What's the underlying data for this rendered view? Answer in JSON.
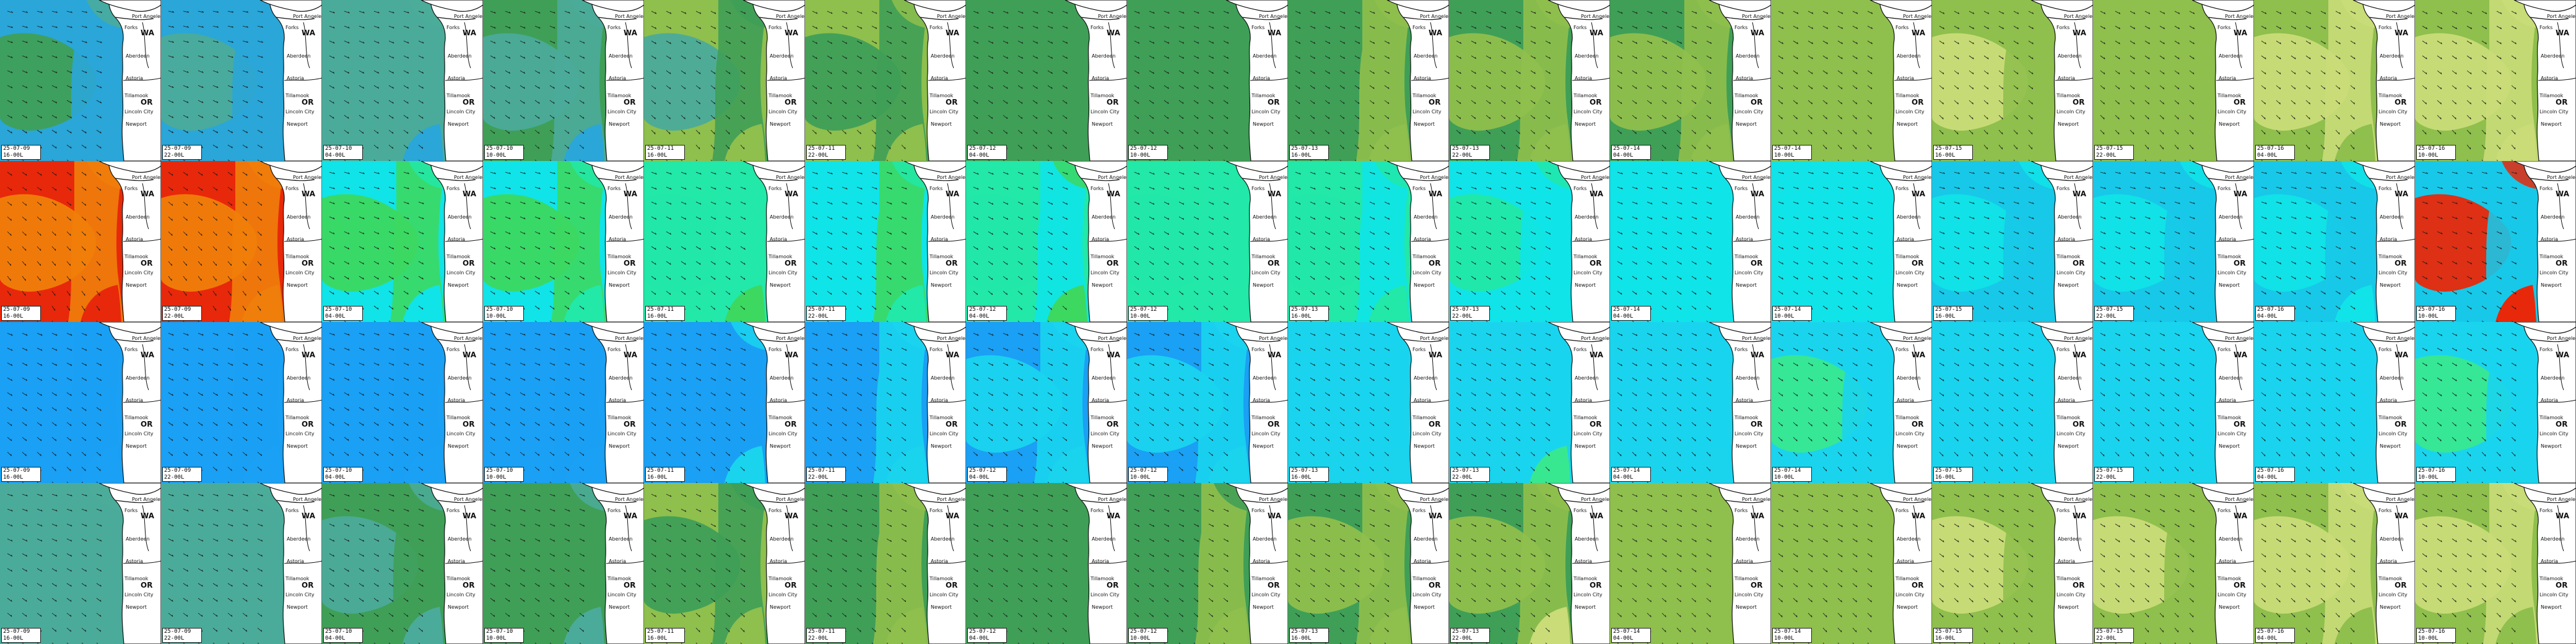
{
  "map": {
    "rows": [
      {
        "name": "row-1",
        "variable_colors": [
          "#2aa6d8",
          "#4bab9a",
          "#3f9f57",
          "#8fbf4d",
          "#c9dc78",
          "#f0a82a"
        ],
        "frames": [
          {
            "date": "25-07-09",
            "time": "16-00L",
            "levels": [
              0.15,
              0.35,
              0.1,
              0.1
            ]
          },
          {
            "date": "25-07-09",
            "time": "22-00L",
            "levels": [
              0.05,
              0.25,
              0.1,
              0.05
            ]
          },
          {
            "date": "25-07-10",
            "time": "04-00L",
            "levels": [
              0.3,
              0.3,
              0.25,
              0.1
            ]
          },
          {
            "date": "25-07-10",
            "time": "10-00L",
            "levels": [
              0.35,
              0.25,
              0.3,
              0.15
            ]
          },
          {
            "date": "25-07-11",
            "time": "16-00L",
            "levels": [
              0.55,
              0.3,
              0.35,
              0.5
            ]
          },
          {
            "date": "25-07-11",
            "time": "22-00L",
            "levels": [
              0.5,
              0.45,
              0.4,
              0.6
            ]
          },
          {
            "date": "25-07-12",
            "time": "04-00L",
            "levels": [
              0.4,
              0.45,
              0.45,
              0.35
            ]
          },
          {
            "date": "25-07-12",
            "time": "10-00L",
            "levels": [
              0.4,
              0.4,
              0.45,
              0.4
            ]
          },
          {
            "date": "25-07-13",
            "time": "16-00L",
            "levels": [
              0.45,
              0.45,
              0.5,
              0.55
            ]
          },
          {
            "date": "25-07-13",
            "time": "22-00L",
            "levels": [
              0.45,
              0.5,
              0.55,
              0.65
            ]
          },
          {
            "date": "25-07-14",
            "time": "04-00L",
            "levels": [
              0.45,
              0.55,
              0.55,
              0.55
            ]
          },
          {
            "date": "25-07-14",
            "time": "10-00L",
            "levels": [
              0.55,
              0.65,
              0.6,
              0.6
            ]
          },
          {
            "date": "25-07-15",
            "time": "16-00L",
            "levels": [
              0.6,
              0.7,
              0.65,
              0.55
            ]
          },
          {
            "date": "25-07-15",
            "time": "22-00L",
            "levels": [
              0.6,
              0.65,
              0.65,
              0.55
            ]
          },
          {
            "date": "25-07-16",
            "time": "04-00L",
            "levels": [
              0.6,
              0.75,
              0.7,
              0.6
            ]
          },
          {
            "date": "25-07-16",
            "time": "10-00L",
            "levels": [
              0.6,
              0.75,
              0.75,
              0.7
            ]
          }
        ]
      },
      {
        "name": "row-2",
        "variable_colors": [
          "#18c8e8",
          "#10e4e8",
          "#22e8a8",
          "#3cd860",
          "#f07e0a",
          "#e8280a"
        ],
        "frames": [
          {
            "date": "25-07-09",
            "time": "16-00L",
            "levels": [
              0.85,
              0.8,
              0.75,
              0.85
            ]
          },
          {
            "date": "25-07-09",
            "time": "22-00L",
            "levels": [
              0.85,
              0.8,
              0.75,
              0.8
            ]
          },
          {
            "date": "25-07-10",
            "time": "04-00L",
            "levels": [
              0.2,
              0.6,
              0.5,
              0.3
            ]
          },
          {
            "date": "25-07-10",
            "time": "10-00L",
            "levels": [
              0.2,
              0.5,
              0.55,
              0.4
            ]
          },
          {
            "date": "25-07-11",
            "time": "16-00L",
            "levels": [
              0.35,
              0.35,
              0.35,
              0.6
            ]
          },
          {
            "date": "25-07-11",
            "time": "22-00L",
            "levels": [
              0.3,
              0.3,
              0.6,
              0.45
            ]
          },
          {
            "date": "25-07-12",
            "time": "04-00L",
            "levels": [
              0.4,
              0.45,
              0.3,
              0.55
            ]
          },
          {
            "date": "25-07-12",
            "time": "10-00L",
            "levels": [
              0.4,
              0.45,
              0.35,
              0.4
            ]
          },
          {
            "date": "25-07-13",
            "time": "16-00L",
            "levels": [
              0.35,
              0.45,
              0.3,
              0.35
            ]
          },
          {
            "date": "25-07-13",
            "time": "22-00L",
            "levels": [
              0.3,
              0.4,
              0.3,
              0.3
            ]
          },
          {
            "date": "25-07-14",
            "time": "04-00L",
            "levels": [
              0.25,
              0.3,
              0.2,
              0.25
            ]
          },
          {
            "date": "25-07-14",
            "time": "10-00L",
            "levels": [
              0.2,
              0.25,
              0.2,
              0.2
            ]
          },
          {
            "date": "25-07-15",
            "time": "16-00L",
            "levels": [
              0.15,
              0.25,
              0.15,
              0.15
            ]
          },
          {
            "date": "25-07-15",
            "time": "22-00L",
            "levels": [
              0.15,
              0.2,
              0.15,
              0.15
            ]
          },
          {
            "date": "25-07-16",
            "time": "04-00L",
            "levels": [
              0.15,
              0.2,
              0.15,
              0.2
            ]
          },
          {
            "date": "25-07-16",
            "time": "10-00L",
            "levels": [
              0.15,
              0.9,
              0.15,
              0.9
            ]
          }
        ]
      },
      {
        "name": "row-3",
        "variable_colors": [
          "#0a24d8",
          "#1a58f0",
          "#1aa0f4",
          "#1ad4ee",
          "#38e890",
          "#e8e020"
        ],
        "frames": [
          {
            "date": "25-07-09",
            "time": "16-00L",
            "levels": [
              0.45,
              0.35,
              0.4,
              0.4
            ]
          },
          {
            "date": "25-07-09",
            "time": "22-00L",
            "levels": [
              0.4,
              0.35,
              0.4,
              0.35
            ]
          },
          {
            "date": "25-07-10",
            "time": "04-00L",
            "levels": [
              0.35,
              0.4,
              0.4,
              0.35
            ]
          },
          {
            "date": "25-07-10",
            "time": "10-00L",
            "levels": [
              0.35,
              0.35,
              0.35,
              0.4
            ]
          },
          {
            "date": "25-07-11",
            "time": "16-00L",
            "levels": [
              0.45,
              0.45,
              0.45,
              0.55
            ]
          },
          {
            "date": "25-07-11",
            "time": "22-00L",
            "levels": [
              0.45,
              0.45,
              0.5,
              0.6
            ]
          },
          {
            "date": "25-07-12",
            "time": "04-00L",
            "levels": [
              0.45,
              0.5,
              0.5,
              0.55
            ]
          },
          {
            "date": "25-07-12",
            "time": "10-00L",
            "levels": [
              0.45,
              0.5,
              0.5,
              0.6
            ]
          },
          {
            "date": "25-07-13",
            "time": "16-00L",
            "levels": [
              0.5,
              0.55,
              0.55,
              0.65
            ]
          },
          {
            "date": "25-07-13",
            "time": "22-00L",
            "levels": [
              0.5,
              0.55,
              0.55,
              0.7
            ]
          },
          {
            "date": "25-07-14",
            "time": "04-00L",
            "levels": [
              0.55,
              0.6,
              0.6,
              0.55
            ]
          },
          {
            "date": "25-07-14",
            "time": "10-00L",
            "levels": [
              0.6,
              0.7,
              0.65,
              0.6
            ]
          },
          {
            "date": "25-07-15",
            "time": "16-00L",
            "levels": [
              0.6,
              0.65,
              0.6,
              0.55
            ]
          },
          {
            "date": "25-07-15",
            "time": "22-00L",
            "levels": [
              0.6,
              0.65,
              0.6,
              0.55
            ]
          },
          {
            "date": "25-07-16",
            "time": "04-00L",
            "levels": [
              0.6,
              0.65,
              0.65,
              0.6
            ]
          },
          {
            "date": "25-07-16",
            "time": "10-00L",
            "levels": [
              0.6,
              0.7,
              0.65,
              0.55
            ]
          }
        ]
      },
      {
        "name": "row-4",
        "variable_colors": [
          "#2aa6d8",
          "#4bab9a",
          "#3f9f57",
          "#8fbf4d",
          "#c9dc78",
          "#f0a82a"
        ],
        "frames": [
          {
            "date": "25-07-09",
            "time": "16-00L",
            "levels": [
              0.3,
              0.3,
              0.3,
              0.3
            ]
          },
          {
            "date": "25-07-09",
            "time": "22-00L",
            "levels": [
              0.3,
              0.3,
              0.3,
              0.3
            ]
          },
          {
            "date": "25-07-10",
            "time": "04-00L",
            "levels": [
              0.35,
              0.3,
              0.35,
              0.2
            ]
          },
          {
            "date": "25-07-10",
            "time": "10-00L",
            "levels": [
              0.35,
              0.35,
              0.35,
              0.25
            ]
          },
          {
            "date": "25-07-11",
            "time": "16-00L",
            "levels": [
              0.5,
              0.4,
              0.45,
              0.5
            ]
          },
          {
            "date": "25-07-11",
            "time": "22-00L",
            "levels": [
              0.45,
              0.4,
              0.5,
              0.6
            ]
          },
          {
            "date": "25-07-12",
            "time": "04-00L",
            "levels": [
              0.45,
              0.45,
              0.45,
              0.45
            ]
          },
          {
            "date": "25-07-12",
            "time": "10-00L",
            "levels": [
              0.45,
              0.45,
              0.5,
              0.5
            ]
          },
          {
            "date": "25-07-13",
            "time": "16-00L",
            "levels": [
              0.45,
              0.5,
              0.55,
              0.65
            ]
          },
          {
            "date": "25-07-13",
            "time": "22-00L",
            "levels": [
              0.45,
              0.5,
              0.55,
              0.7
            ]
          },
          {
            "date": "25-07-14",
            "time": "04-00L",
            "levels": [
              0.5,
              0.6,
              0.55,
              0.55
            ]
          },
          {
            "date": "25-07-14",
            "time": "10-00L",
            "levels": [
              0.55,
              0.65,
              0.6,
              0.6
            ]
          },
          {
            "date": "25-07-15",
            "time": "16-00L",
            "levels": [
              0.6,
              0.7,
              0.65,
              0.6
            ]
          },
          {
            "date": "25-07-15",
            "time": "22-00L",
            "levels": [
              0.6,
              0.7,
              0.65,
              0.6
            ]
          },
          {
            "date": "25-07-16",
            "time": "04-00L",
            "levels": [
              0.6,
              0.75,
              0.7,
              0.65
            ]
          },
          {
            "date": "25-07-16",
            "time": "10-00L",
            "levels": [
              0.55,
              0.75,
              0.7,
              0.6
            ]
          }
        ]
      }
    ],
    "place_labels": {
      "state_north": "WA",
      "state_south": "OR",
      "port_angeles": "Port Angeles",
      "forks": "Forks",
      "aberdeen": "Aberdeen",
      "astoria": "Astoria",
      "tillamook": "Tillamook",
      "lincoln_city": "Lincoln City",
      "newport": "Newport"
    },
    "colors": {
      "land": "#ffffff",
      "coastline": "#111111",
      "stamp_background": "#ffffff",
      "wind_arrows": "#1a1a1a"
    },
    "icon": "wind-arrow-icon"
  }
}
